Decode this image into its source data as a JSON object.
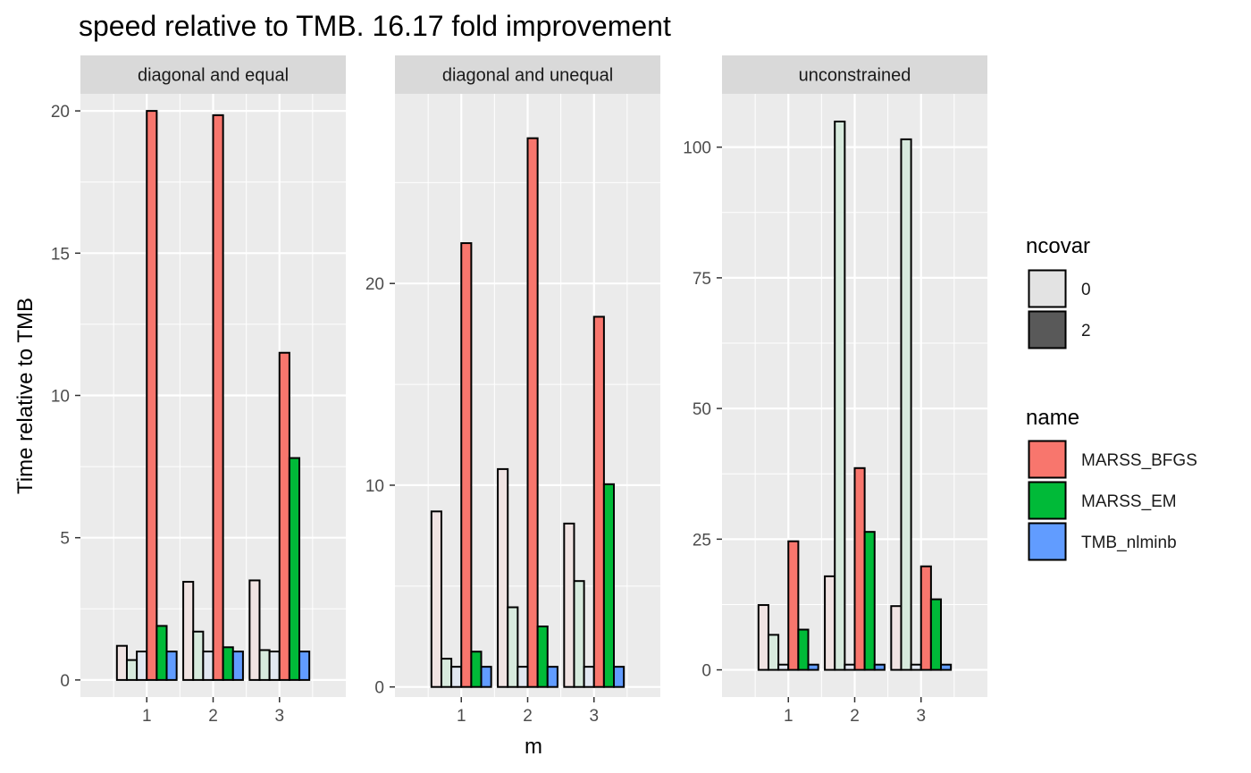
{
  "chart_data": {
    "type": "bar",
    "title": "speed relative to TMB. 16.17 fold improvement",
    "xlabel": "m",
    "ylabel": "Time relative to TMB",
    "categories": [
      "1",
      "2",
      "3"
    ],
    "grid": true,
    "panels": [
      {
        "name": "diagonal and equal",
        "ylim": [
          -0.6,
          20.6
        ],
        "yticks": [
          0,
          5,
          10,
          15,
          20
        ],
        "bars": [
          {
            "m": "1",
            "name": "MARSS_BFGS",
            "ncovar": "0",
            "value": 1.2
          },
          {
            "m": "1",
            "name": "MARSS_EM",
            "ncovar": "0",
            "value": 0.7
          },
          {
            "m": "1",
            "name": "TMB_nlminb",
            "ncovar": "0",
            "value": 1.0
          },
          {
            "m": "1",
            "name": "MARSS_BFGS",
            "ncovar": "2",
            "value": 20.0
          },
          {
            "m": "1",
            "name": "MARSS_EM",
            "ncovar": "2",
            "value": 1.9
          },
          {
            "m": "1",
            "name": "TMB_nlminb",
            "ncovar": "2",
            "value": 1.0
          },
          {
            "m": "2",
            "name": "MARSS_BFGS",
            "ncovar": "0",
            "value": 3.45
          },
          {
            "m": "2",
            "name": "MARSS_EM",
            "ncovar": "0",
            "value": 1.7
          },
          {
            "m": "2",
            "name": "TMB_nlminb",
            "ncovar": "0",
            "value": 1.0
          },
          {
            "m": "2",
            "name": "MARSS_BFGS",
            "ncovar": "2",
            "value": 19.85
          },
          {
            "m": "2",
            "name": "MARSS_EM",
            "ncovar": "2",
            "value": 1.15
          },
          {
            "m": "2",
            "name": "TMB_nlminb",
            "ncovar": "2",
            "value": 1.0
          },
          {
            "m": "3",
            "name": "MARSS_BFGS",
            "ncovar": "0",
            "value": 3.5
          },
          {
            "m": "3",
            "name": "MARSS_EM",
            "ncovar": "0",
            "value": 1.05
          },
          {
            "m": "3",
            "name": "TMB_nlminb",
            "ncovar": "0",
            "value": 1.0
          },
          {
            "m": "3",
            "name": "MARSS_BFGS",
            "ncovar": "2",
            "value": 11.5
          },
          {
            "m": "3",
            "name": "MARSS_EM",
            "ncovar": "2",
            "value": 7.8
          },
          {
            "m": "3",
            "name": "TMB_nlminb",
            "ncovar": "2",
            "value": 1.0
          }
        ]
      },
      {
        "name": "diagonal and unequal",
        "ylim": [
          -0.5,
          29.4
        ],
        "yticks": [
          0,
          10,
          20
        ],
        "bars": [
          {
            "m": "1",
            "name": "MARSS_BFGS",
            "ncovar": "0",
            "value": 8.7
          },
          {
            "m": "1",
            "name": "MARSS_EM",
            "ncovar": "0",
            "value": 1.4
          },
          {
            "m": "1",
            "name": "TMB_nlminb",
            "ncovar": "0",
            "value": 1.0
          },
          {
            "m": "1",
            "name": "MARSS_BFGS",
            "ncovar": "2",
            "value": 22.0
          },
          {
            "m": "1",
            "name": "MARSS_EM",
            "ncovar": "2",
            "value": 1.75
          },
          {
            "m": "1",
            "name": "TMB_nlminb",
            "ncovar": "2",
            "value": 1.0
          },
          {
            "m": "2",
            "name": "MARSS_BFGS",
            "ncovar": "0",
            "value": 10.8
          },
          {
            "m": "2",
            "name": "MARSS_EM",
            "ncovar": "0",
            "value": 3.95
          },
          {
            "m": "2",
            "name": "TMB_nlminb",
            "ncovar": "0",
            "value": 1.0
          },
          {
            "m": "2",
            "name": "MARSS_BFGS",
            "ncovar": "2",
            "value": 27.2
          },
          {
            "m": "2",
            "name": "MARSS_EM",
            "ncovar": "2",
            "value": 3.0
          },
          {
            "m": "2",
            "name": "TMB_nlminb",
            "ncovar": "2",
            "value": 1.0
          },
          {
            "m": "3",
            "name": "MARSS_BFGS",
            "ncovar": "0",
            "value": 8.1
          },
          {
            "m": "3",
            "name": "MARSS_EM",
            "ncovar": "0",
            "value": 5.25
          },
          {
            "m": "3",
            "name": "TMB_nlminb",
            "ncovar": "0",
            "value": 1.0
          },
          {
            "m": "3",
            "name": "MARSS_BFGS",
            "ncovar": "2",
            "value": 18.35
          },
          {
            "m": "3",
            "name": "MARSS_EM",
            "ncovar": "2",
            "value": 10.05
          },
          {
            "m": "3",
            "name": "TMB_nlminb",
            "ncovar": "2",
            "value": 1.0
          }
        ]
      },
      {
        "name": "unconstrained",
        "ylim": [
          -5.2,
          110.2
        ],
        "yticks": [
          0,
          25,
          50,
          75,
          100
        ],
        "bars": [
          {
            "m": "1",
            "name": "MARSS_BFGS",
            "ncovar": "0",
            "value": 12.4
          },
          {
            "m": "1",
            "name": "MARSS_EM",
            "ncovar": "0",
            "value": 6.7
          },
          {
            "m": "1",
            "name": "TMB_nlminb",
            "ncovar": "0",
            "value": 1.0
          },
          {
            "m": "1",
            "name": "MARSS_BFGS",
            "ncovar": "2",
            "value": 24.6
          },
          {
            "m": "1",
            "name": "MARSS_EM",
            "ncovar": "2",
            "value": 7.7
          },
          {
            "m": "1",
            "name": "TMB_nlminb",
            "ncovar": "2",
            "value": 1.0
          },
          {
            "m": "2",
            "name": "MARSS_BFGS",
            "ncovar": "0",
            "value": 17.9
          },
          {
            "m": "2",
            "name": "MARSS_EM",
            "ncovar": "0",
            "value": 104.9
          },
          {
            "m": "2",
            "name": "TMB_nlminb",
            "ncovar": "0",
            "value": 1.0
          },
          {
            "m": "2",
            "name": "MARSS_BFGS",
            "ncovar": "2",
            "value": 38.6
          },
          {
            "m": "2",
            "name": "MARSS_EM",
            "ncovar": "2",
            "value": 26.4
          },
          {
            "m": "2",
            "name": "TMB_nlminb",
            "ncovar": "2",
            "value": 1.0
          },
          {
            "m": "3",
            "name": "MARSS_BFGS",
            "ncovar": "0",
            "value": 12.2
          },
          {
            "m": "3",
            "name": "MARSS_EM",
            "ncovar": "0",
            "value": 101.5
          },
          {
            "m": "3",
            "name": "TMB_nlminb",
            "ncovar": "0",
            "value": 1.0
          },
          {
            "m": "3",
            "name": "MARSS_BFGS",
            "ncovar": "2",
            "value": 19.8
          },
          {
            "m": "3",
            "name": "MARSS_EM",
            "ncovar": "2",
            "value": 13.5
          },
          {
            "m": "3",
            "name": "TMB_nlminb",
            "ncovar": "2",
            "value": 1.0
          }
        ]
      }
    ],
    "legend": {
      "placement": "right",
      "ncovar": {
        "title": "ncovar",
        "items": [
          {
            "label": "0",
            "color": "#e3e3e3"
          },
          {
            "label": "2",
            "color": "#595959"
          }
        ]
      },
      "name": {
        "title": "name",
        "items": [
          {
            "label": "MARSS_BFGS",
            "color": "#f8766d"
          },
          {
            "label": "MARSS_EM",
            "color": "#00ba38"
          },
          {
            "label": "TMB_nlminb",
            "color": "#619cff"
          }
        ]
      }
    },
    "colors": {
      "panel_background": "#ebebeb",
      "strip_background": "#d9d9d9",
      "grid": "#ffffff",
      "bar_outline": "#000000",
      "ncovar_0_tint": "#f0f0f0"
    }
  }
}
